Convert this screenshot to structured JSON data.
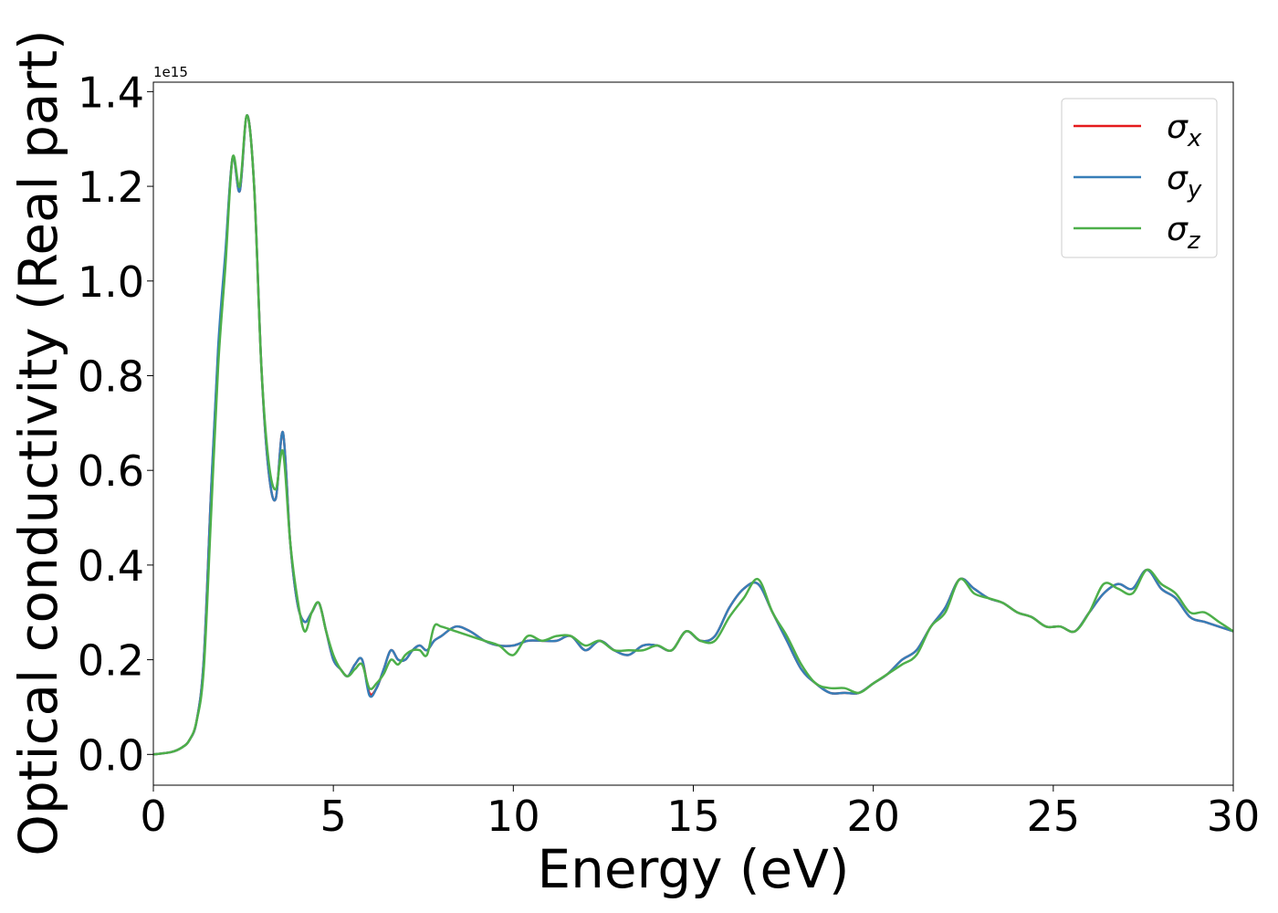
{
  "chart_data": {
    "type": "line",
    "xlabel": "Energy (eV)",
    "ylabel": "Optical conductivity (Real part)",
    "y_offset_label": "1e15",
    "xlim": [
      0,
      30
    ],
    "ylim": [
      -0.065,
      1.42
    ],
    "x_ticks": [
      0,
      5,
      10,
      15,
      20,
      25,
      30
    ],
    "x_tick_labels": [
      "0",
      "5",
      "10",
      "15",
      "20",
      "25",
      "30"
    ],
    "y_ticks": [
      0.0,
      0.2,
      0.4,
      0.6,
      0.8,
      1.0,
      1.2,
      1.4
    ],
    "y_tick_labels": [
      "0.0",
      "0.2",
      "0.4",
      "0.6",
      "0.8",
      "1.0",
      "1.2",
      "1.4"
    ],
    "grid": false,
    "legend_position": "top-right",
    "series": [
      {
        "name": "σx",
        "legend_base": "σ",
        "legend_sub": "x",
        "color": "#e41a1c",
        "x": [
          0,
          0.5,
          0.8,
          1.0,
          1.2,
          1.4,
          1.6,
          1.8,
          2.0,
          2.2,
          2.4,
          2.6,
          2.8,
          3.0,
          3.2,
          3.4,
          3.6,
          3.8,
          4.0,
          4.2,
          4.4,
          4.6,
          4.8,
          5.0,
          5.2,
          5.4,
          5.6,
          5.8,
          6.0,
          6.2,
          6.4,
          6.6,
          6.8,
          7.0,
          7.2,
          7.4,
          7.6,
          7.8,
          8.0,
          8.4,
          8.8,
          9.2,
          9.6,
          10.0,
          10.4,
          10.8,
          11.2,
          11.6,
          12.0,
          12.4,
          12.8,
          13.2,
          13.6,
          14.0,
          14.4,
          14.8,
          15.2,
          15.6,
          16.0,
          16.4,
          16.8,
          17.2,
          17.6,
          18.0,
          18.4,
          18.8,
          19.2,
          19.6,
          20.0,
          20.4,
          20.8,
          21.2,
          21.6,
          22.0,
          22.4,
          22.8,
          23.2,
          23.6,
          24.0,
          24.4,
          24.8,
          25.2,
          25.6,
          26.0,
          26.4,
          26.8,
          27.2,
          27.6,
          28.0,
          28.4,
          28.8,
          29.2,
          29.6,
          30.0
        ],
        "values": [
          0.0,
          0.005,
          0.015,
          0.03,
          0.07,
          0.2,
          0.55,
          0.85,
          1.05,
          1.26,
          1.19,
          1.35,
          1.2,
          0.82,
          0.6,
          0.54,
          0.68,
          0.45,
          0.32,
          0.28,
          0.3,
          0.32,
          0.26,
          0.2,
          0.18,
          0.165,
          0.19,
          0.2,
          0.13,
          0.14,
          0.18,
          0.22,
          0.2,
          0.2,
          0.22,
          0.23,
          0.22,
          0.24,
          0.25,
          0.27,
          0.26,
          0.24,
          0.23,
          0.23,
          0.24,
          0.24,
          0.24,
          0.25,
          0.22,
          0.24,
          0.22,
          0.21,
          0.23,
          0.23,
          0.22,
          0.26,
          0.24,
          0.25,
          0.31,
          0.35,
          0.36,
          0.3,
          0.24,
          0.18,
          0.15,
          0.13,
          0.13,
          0.13,
          0.15,
          0.17,
          0.2,
          0.22,
          0.27,
          0.31,
          0.37,
          0.35,
          0.33,
          0.32,
          0.3,
          0.29,
          0.27,
          0.27,
          0.26,
          0.3,
          0.34,
          0.36,
          0.35,
          0.39,
          0.35,
          0.33,
          0.29,
          0.28,
          0.27,
          0.26
        ]
      },
      {
        "name": "σy",
        "legend_base": "σ",
        "legend_sub": "y",
        "color": "#377eb8",
        "x": [
          0,
          0.5,
          0.8,
          1.0,
          1.2,
          1.4,
          1.6,
          1.8,
          2.0,
          2.2,
          2.4,
          2.6,
          2.8,
          3.0,
          3.2,
          3.4,
          3.6,
          3.8,
          4.0,
          4.2,
          4.4,
          4.6,
          4.8,
          5.0,
          5.2,
          5.4,
          5.6,
          5.8,
          6.0,
          6.2,
          6.4,
          6.6,
          6.8,
          7.0,
          7.2,
          7.4,
          7.6,
          7.8,
          8.0,
          8.4,
          8.8,
          9.2,
          9.6,
          10.0,
          10.4,
          10.8,
          11.2,
          11.6,
          12.0,
          12.4,
          12.8,
          13.2,
          13.6,
          14.0,
          14.4,
          14.8,
          15.2,
          15.6,
          16.0,
          16.4,
          16.8,
          17.2,
          17.6,
          18.0,
          18.4,
          18.8,
          19.2,
          19.6,
          20.0,
          20.4,
          20.8,
          21.2,
          21.6,
          22.0,
          22.4,
          22.8,
          23.2,
          23.6,
          24.0,
          24.4,
          24.8,
          25.2,
          25.6,
          26.0,
          26.4,
          26.8,
          27.2,
          27.6,
          28.0,
          28.4,
          28.8,
          29.2,
          29.6,
          30.0
        ],
        "values": [
          0.0,
          0.005,
          0.015,
          0.03,
          0.07,
          0.2,
          0.55,
          0.86,
          1.06,
          1.26,
          1.19,
          1.35,
          1.2,
          0.82,
          0.6,
          0.54,
          0.68,
          0.45,
          0.32,
          0.28,
          0.3,
          0.32,
          0.26,
          0.2,
          0.18,
          0.165,
          0.19,
          0.2,
          0.125,
          0.14,
          0.18,
          0.22,
          0.2,
          0.2,
          0.22,
          0.23,
          0.22,
          0.24,
          0.25,
          0.27,
          0.26,
          0.24,
          0.23,
          0.23,
          0.24,
          0.24,
          0.24,
          0.25,
          0.22,
          0.24,
          0.22,
          0.21,
          0.23,
          0.23,
          0.22,
          0.26,
          0.24,
          0.25,
          0.31,
          0.35,
          0.36,
          0.3,
          0.24,
          0.18,
          0.15,
          0.13,
          0.13,
          0.13,
          0.15,
          0.17,
          0.2,
          0.22,
          0.27,
          0.31,
          0.37,
          0.35,
          0.33,
          0.32,
          0.3,
          0.29,
          0.27,
          0.27,
          0.26,
          0.3,
          0.34,
          0.36,
          0.35,
          0.39,
          0.35,
          0.33,
          0.29,
          0.28,
          0.27,
          0.26
        ]
      },
      {
        "name": "σz",
        "legend_base": "σ",
        "legend_sub": "z",
        "color": "#4daf4a",
        "x": [
          0,
          0.5,
          0.8,
          1.0,
          1.2,
          1.4,
          1.6,
          1.8,
          2.0,
          2.2,
          2.4,
          2.6,
          2.8,
          3.0,
          3.2,
          3.4,
          3.6,
          3.8,
          4.0,
          4.2,
          4.4,
          4.6,
          4.8,
          5.0,
          5.2,
          5.4,
          5.6,
          5.8,
          6.0,
          6.2,
          6.4,
          6.6,
          6.8,
          7.0,
          7.2,
          7.4,
          7.6,
          7.8,
          8.0,
          8.4,
          8.8,
          9.2,
          9.6,
          10.0,
          10.4,
          10.8,
          11.2,
          11.6,
          12.0,
          12.4,
          12.8,
          13.2,
          13.6,
          14.0,
          14.4,
          14.8,
          15.2,
          15.6,
          16.0,
          16.4,
          16.8,
          17.2,
          17.6,
          18.0,
          18.4,
          18.8,
          19.2,
          19.6,
          20.0,
          20.4,
          20.8,
          21.2,
          21.6,
          22.0,
          22.4,
          22.8,
          23.2,
          23.6,
          24.0,
          24.4,
          24.8,
          25.2,
          25.6,
          26.0,
          26.4,
          26.8,
          27.2,
          27.6,
          28.0,
          28.4,
          28.8,
          29.2,
          29.6,
          30.0
        ],
        "values": [
          0.0,
          0.005,
          0.015,
          0.03,
          0.07,
          0.18,
          0.5,
          0.82,
          1.03,
          1.26,
          1.2,
          1.35,
          1.2,
          0.82,
          0.62,
          0.56,
          0.64,
          0.45,
          0.33,
          0.26,
          0.3,
          0.32,
          0.26,
          0.21,
          0.18,
          0.165,
          0.18,
          0.19,
          0.14,
          0.15,
          0.17,
          0.2,
          0.19,
          0.21,
          0.22,
          0.22,
          0.21,
          0.27,
          0.27,
          0.26,
          0.25,
          0.24,
          0.23,
          0.21,
          0.25,
          0.24,
          0.25,
          0.25,
          0.23,
          0.24,
          0.22,
          0.22,
          0.22,
          0.23,
          0.22,
          0.26,
          0.24,
          0.24,
          0.29,
          0.33,
          0.37,
          0.3,
          0.25,
          0.19,
          0.15,
          0.14,
          0.14,
          0.13,
          0.15,
          0.17,
          0.19,
          0.21,
          0.27,
          0.3,
          0.37,
          0.34,
          0.33,
          0.32,
          0.3,
          0.29,
          0.27,
          0.27,
          0.26,
          0.3,
          0.36,
          0.35,
          0.34,
          0.39,
          0.36,
          0.34,
          0.3,
          0.3,
          0.28,
          0.26
        ]
      }
    ]
  }
}
